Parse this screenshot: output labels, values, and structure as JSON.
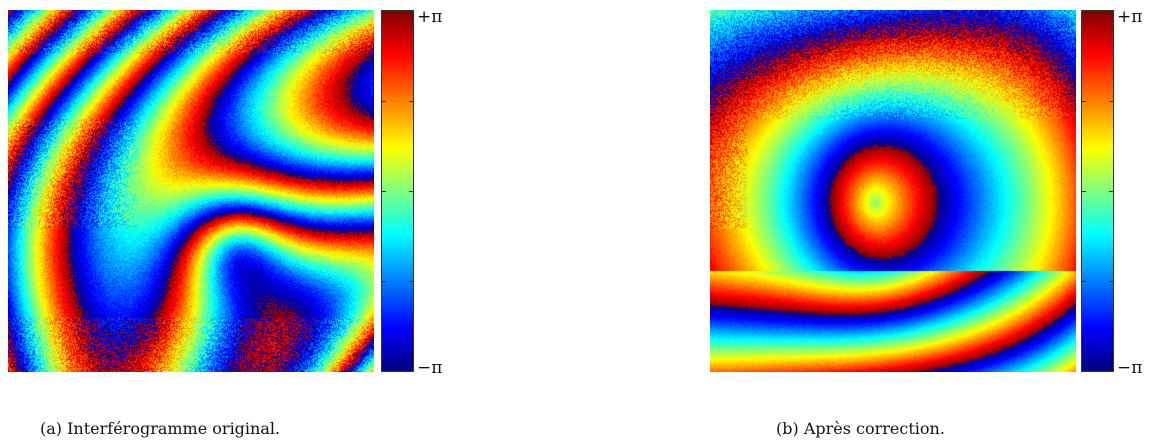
{
  "figures": [
    {
      "id": "a",
      "caption": "(a) Interférogramme original.",
      "colorbar": {
        "max_label": "+π",
        "min_label": "−π"
      },
      "seed": 7,
      "style": "noisy"
    },
    {
      "id": "b",
      "caption": "(b) Après correction.",
      "colorbar": {
        "max_label": "+π",
        "min_label": "−π"
      },
      "seed": 13,
      "style": "corrected"
    }
  ],
  "colormap": [
    "#00007f",
    "#0000ff",
    "#007fff",
    "#00ffff",
    "#7fff7f",
    "#ffff00",
    "#ff7f00",
    "#ff0000",
    "#7f0000"
  ]
}
